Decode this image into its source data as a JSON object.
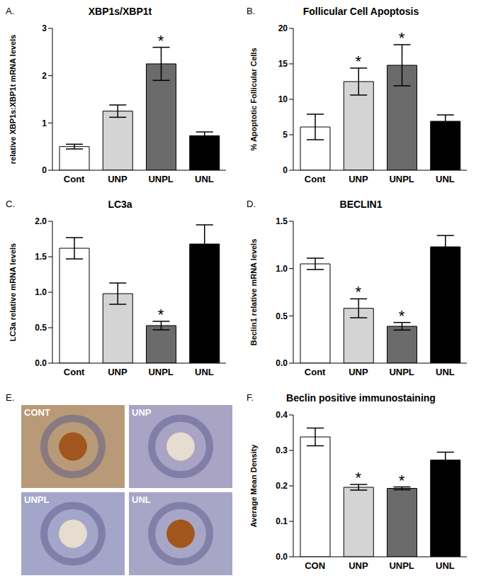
{
  "chart_data": [
    {
      "panel": "A.",
      "type": "bar",
      "title": "XBP1s/XBP1t",
      "y_label": "relative XBP1s:XBP1t mRNA levels",
      "categories": [
        "Cont",
        "UNP",
        "UNPL",
        "UNL"
      ],
      "values": [
        0.5,
        1.25,
        2.25,
        0.73
      ],
      "errors": [
        0.05,
        0.13,
        0.35,
        0.08
      ],
      "colors": [
        "#ffffff",
        "#d4d4d4",
        "#6b6b6b",
        "#000000"
      ],
      "ylim": [
        0,
        3
      ],
      "yticks": [
        0,
        1,
        2,
        3
      ],
      "grid": false,
      "annotations": [
        {
          "category": "UNPL",
          "text": "*"
        }
      ]
    },
    {
      "panel": "B.",
      "type": "bar",
      "title": "Follicular Cell Apoptosis",
      "y_label": "% Apoptotic Follicular Cells",
      "categories": [
        "Cont",
        "UNP",
        "UNPL",
        "UNL"
      ],
      "values": [
        6.1,
        12.5,
        14.8,
        6.9
      ],
      "errors": [
        1.8,
        1.9,
        2.9,
        0.9
      ],
      "colors": [
        "#ffffff",
        "#d4d4d4",
        "#6b6b6b",
        "#000000"
      ],
      "ylim": [
        0,
        20
      ],
      "yticks": [
        0,
        5,
        10,
        15,
        20
      ],
      "grid": false,
      "annotations": [
        {
          "category": "UNP",
          "text": "*"
        },
        {
          "category": "UNPL",
          "text": "*"
        }
      ]
    },
    {
      "panel": "C.",
      "type": "bar",
      "title": "LC3a",
      "y_label": "LC3a relative mRNA levels",
      "categories": [
        "Cont",
        "UNP",
        "UNPL",
        "UNL"
      ],
      "values": [
        1.62,
        0.98,
        0.53,
        1.68
      ],
      "errors": [
        0.15,
        0.15,
        0.06,
        0.27
      ],
      "colors": [
        "#ffffff",
        "#d4d4d4",
        "#6b6b6b",
        "#000000"
      ],
      "ylim": [
        0,
        2
      ],
      "yticks": [
        {
          "value": 0,
          "label": "0.0"
        },
        0.5,
        {
          "value": 1,
          "label": "1.0"
        },
        1.5,
        {
          "value": 2,
          "label": "2.0"
        }
      ],
      "grid": false,
      "annotations": [
        {
          "category": "UNPL",
          "text": "*"
        }
      ]
    },
    {
      "panel": "D.",
      "type": "bar",
      "title": "BECLIN1",
      "y_label": "Beclin1 relative mRNA levels",
      "categories": [
        "Cont",
        "UNP",
        "UNPL",
        "UNL"
      ],
      "values": [
        1.05,
        0.58,
        0.39,
        1.23
      ],
      "errors": [
        0.06,
        0.1,
        0.04,
        0.12
      ],
      "colors": [
        "#ffffff",
        "#d4d4d4",
        "#6b6b6b",
        "#000000"
      ],
      "ylim": [
        0,
        1.5
      ],
      "yticks": [
        {
          "value": 0,
          "label": "0.0"
        },
        0.5,
        {
          "value": 1,
          "label": "1.0"
        },
        1.5
      ],
      "grid": false,
      "annotations": [
        {
          "category": "UNP",
          "text": "*"
        },
        {
          "category": "UNPL",
          "text": "*"
        }
      ]
    },
    {
      "panel": "E.",
      "type": "image",
      "labels": [
        "CONT",
        "UNP",
        "UNPL",
        "UNL"
      ]
    },
    {
      "panel": "F.",
      "type": "bar",
      "title": "Beclin positive immunostaining",
      "y_label": "Average Mean Density",
      "categories": [
        "CON",
        "UNP",
        "UNPL",
        "UNL"
      ],
      "values": [
        0.338,
        0.196,
        0.193,
        0.273
      ],
      "errors": [
        0.025,
        0.008,
        0.004,
        0.022
      ],
      "colors": [
        "#ffffff",
        "#d4d4d4",
        "#6b6b6b",
        "#000000"
      ],
      "ylim": [
        0,
        0.4
      ],
      "yticks": [
        {
          "value": 0,
          "label": "0.0"
        },
        0.1,
        0.2,
        0.3,
        0.4
      ],
      "grid": false,
      "annotations": [
        {
          "category": "UNP",
          "text": "*"
        },
        {
          "category": "UNPL",
          "text": "*"
        }
      ]
    }
  ]
}
